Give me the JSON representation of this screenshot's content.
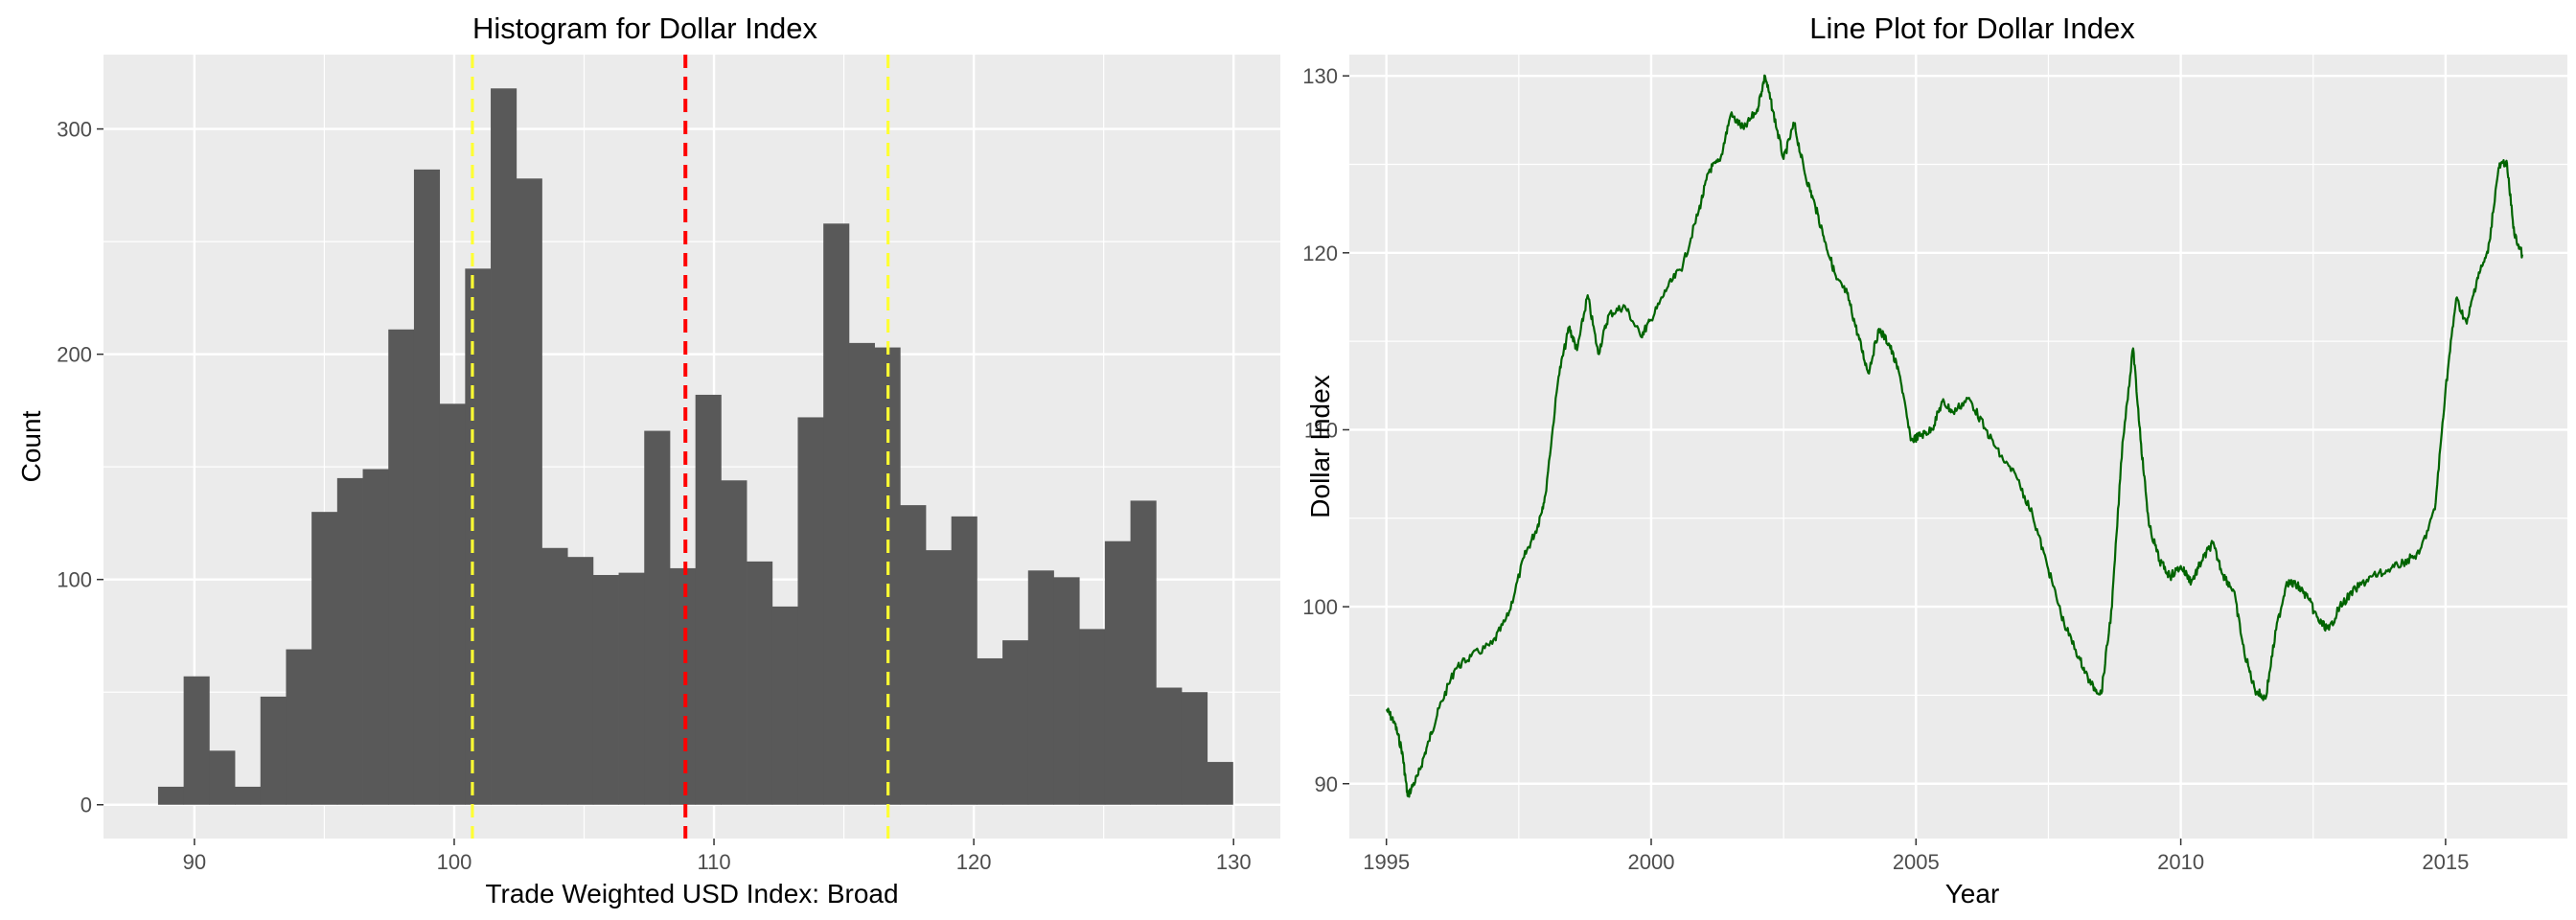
{
  "chart_data": [
    {
      "type": "bar",
      "title": "Histogram for Dollar Index",
      "xlabel": "Trade Weighted USD Index: Broad",
      "ylabel": "Count",
      "xlim": [
        86.5,
        131.8
      ],
      "ylim": [
        -15,
        333
      ],
      "x_ticks": [
        "90",
        "100",
        "110",
        "120",
        "130"
      ],
      "y_ticks": [
        "0",
        "100",
        "200",
        "300"
      ],
      "bin_start": 88.6,
      "bin_width": 0.985,
      "counts": [
        8,
        57,
        24,
        8,
        48,
        69,
        130,
        145,
        149,
        211,
        282,
        178,
        238,
        318,
        278,
        114,
        110,
        102,
        103,
        166,
        105,
        182,
        144,
        108,
        88,
        172,
        258,
        205,
        203,
        133,
        113,
        128,
        65,
        73,
        104,
        101,
        78,
        117,
        135,
        52,
        50,
        19
      ],
      "bar_color": "#595959",
      "reference_lines": [
        {
          "x": 100.7,
          "color": "#FFFF33"
        },
        {
          "x": 108.9,
          "color": "#FF0000"
        },
        {
          "x": 116.7,
          "color": "#FFFF33"
        }
      ],
      "grid": true,
      "legend": "none"
    },
    {
      "type": "line",
      "title": "Line Plot for Dollar Index",
      "xlabel": "Year",
      "ylabel": "Dollar Index",
      "xlim": [
        1994.3,
        2017.3
      ],
      "ylim": [
        86.9,
        131.2
      ],
      "x_ticks": [
        "1995",
        "2000",
        "2005",
        "2010",
        "2015"
      ],
      "y_ticks": [
        "90",
        "100",
        "110",
        "120",
        "130"
      ],
      "line_color": "#006400",
      "x": [
        1995.0,
        1995.15,
        1995.3,
        1995.4,
        1995.6,
        1995.8,
        1996.0,
        1996.3,
        1996.6,
        1997.0,
        1997.3,
        1997.6,
        1997.85,
        1998.0,
        1998.25,
        1998.45,
        1998.6,
        1998.8,
        1999.0,
        1999.2,
        1999.5,
        1999.8,
        2000.0,
        2000.3,
        2000.6,
        2000.9,
        2001.1,
        2001.3,
        2001.5,
        2001.75,
        2002.0,
        2002.15,
        2002.3,
        2002.5,
        2002.7,
        2002.9,
        2003.1,
        2003.3,
        2003.5,
        2003.7,
        2003.9,
        2004.1,
        2004.3,
        2004.5,
        2004.7,
        2004.9,
        2005.1,
        2005.3,
        2005.5,
        2005.7,
        2006.0,
        2006.3,
        2006.6,
        2006.9,
        2007.2,
        2007.5,
        2007.8,
        2008.1,
        2008.3,
        2008.5,
        2008.7,
        2008.9,
        2009.1,
        2009.25,
        2009.4,
        2009.6,
        2009.8,
        2010.0,
        2010.2,
        2010.4,
        2010.6,
        2010.8,
        2011.0,
        2011.2,
        2011.4,
        2011.6,
        2011.8,
        2012.0,
        2012.2,
        2012.4,
        2012.6,
        2012.8,
        2013.0,
        2013.3,
        2013.6,
        2013.9,
        2014.2,
        2014.5,
        2014.8,
        2015.0,
        2015.2,
        2015.4,
        2015.6,
        2015.8,
        2016.0,
        2016.15,
        2016.3,
        2016.45
      ],
      "y": [
        94.2,
        93.5,
        91.8,
        89.3,
        90.5,
        92.4,
        94.3,
        96.5,
        97.2,
        97.9,
        99.5,
        102.8,
        104.5,
        106.3,
        113.0,
        115.8,
        114.5,
        117.6,
        114.3,
        116.5,
        117.0,
        115.3,
        116.2,
        118.0,
        119.3,
        122.4,
        124.7,
        125.2,
        127.8,
        127.0,
        128.1,
        130.0,
        128.0,
        125.3,
        127.3,
        124.5,
        122.6,
        120.5,
        118.5,
        117.7,
        115.4,
        113.2,
        115.7,
        114.8,
        113.0,
        109.4,
        109.7,
        110.0,
        111.6,
        111.0,
        111.8,
        110.1,
        108.5,
        107.3,
        105.2,
        102.1,
        99.0,
        97.0,
        95.6,
        95.1,
        100.0,
        109.3,
        114.6,
        109.2,
        104.6,
        102.6,
        101.7,
        102.3,
        101.4,
        102.6,
        103.6,
        101.8,
        100.9,
        97.4,
        95.3,
        94.8,
        98.7,
        101.4,
        101.2,
        100.5,
        99.2,
        98.7,
        100.0,
        101.0,
        101.7,
        102.0,
        102.5,
        103.0,
        105.5,
        112.3,
        117.4,
        116.0,
        118.6,
        120.0,
        124.8,
        125.2,
        121.0,
        119.9
      ],
      "grid": true,
      "legend": "none"
    }
  ]
}
